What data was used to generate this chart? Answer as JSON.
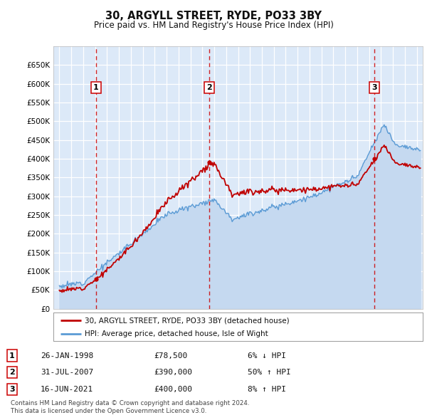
{
  "title": "30, ARGYLL STREET, RYDE, PO33 3BY",
  "subtitle": "Price paid vs. HM Land Registry's House Price Index (HPI)",
  "plot_bg_color": "#dce9f8",
  "hpi_color": "#5b9bd5",
  "hpi_fill_color": "#c5d9f0",
  "price_color": "#c00000",
  "dashed_line_color": "#cc0000",
  "sale_years": [
    1998.07,
    2007.58,
    2021.46
  ],
  "sale_prices": [
    78500,
    390000,
    400000
  ],
  "sale_labels": [
    "1",
    "2",
    "3"
  ],
  "legend_entries": [
    "30, ARGYLL STREET, RYDE, PO33 3BY (detached house)",
    "HPI: Average price, detached house, Isle of Wight"
  ],
  "table_rows": [
    {
      "num": "1",
      "date": "26-JAN-1998",
      "price": "£78,500",
      "hpi": "6% ↓ HPI"
    },
    {
      "num": "2",
      "date": "31-JUL-2007",
      "price": "£390,000",
      "hpi": "50% ↑ HPI"
    },
    {
      "num": "3",
      "date": "16-JUN-2021",
      "price": "£400,000",
      "hpi": "8% ↑ HPI"
    }
  ],
  "footer": "Contains HM Land Registry data © Crown copyright and database right 2024.\nThis data is licensed under the Open Government Licence v3.0.",
  "xmin": 1994.5,
  "xmax": 2025.5,
  "ymin": 0,
  "ymax": 700000,
  "yticks": [
    0,
    50000,
    100000,
    150000,
    200000,
    250000,
    300000,
    350000,
    400000,
    450000,
    500000,
    550000,
    600000,
    650000
  ]
}
